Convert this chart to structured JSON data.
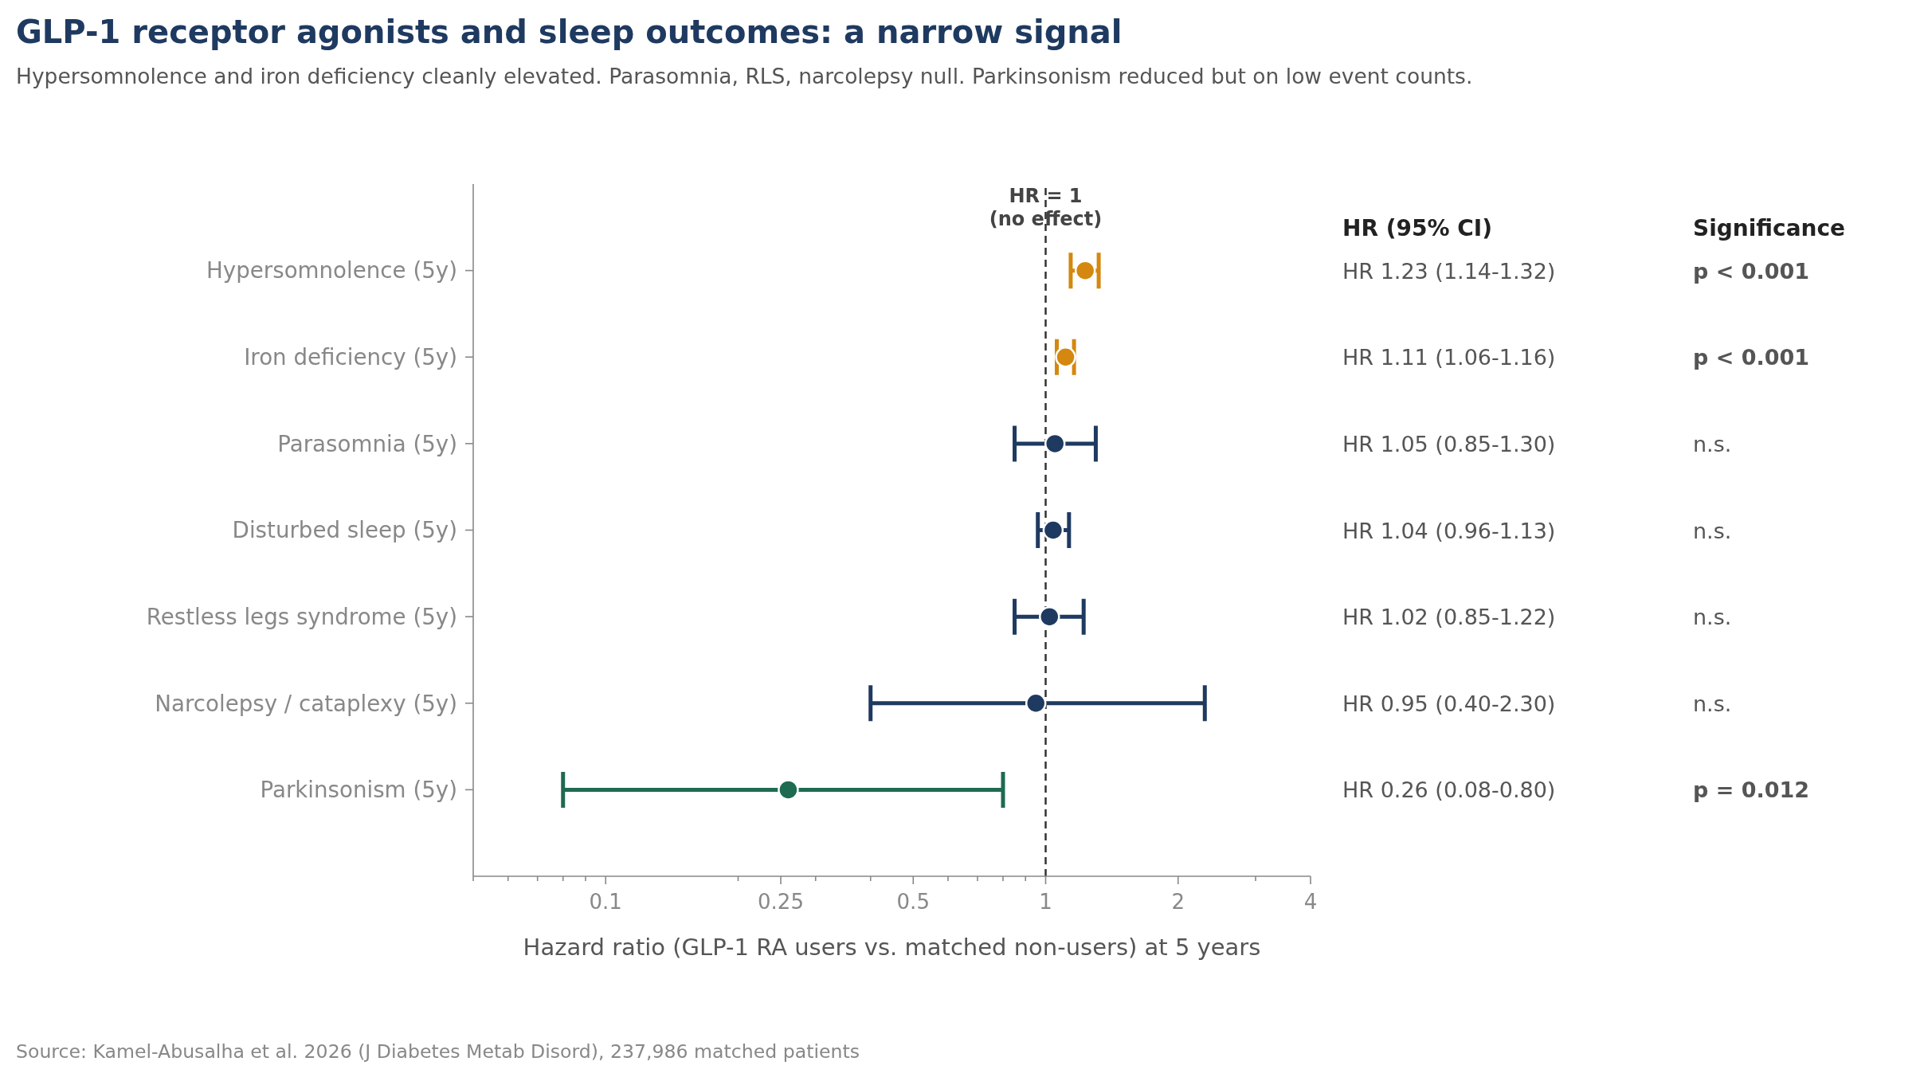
{
  "chart_data": {
    "type": "scatter",
    "orientation": "horizontal",
    "title": "GLP-1 receptor agonists and sleep outcomes: a narrow signal",
    "subtitle": "Hypersomnolence and iron deficiency cleanly elevated. Parasomnia, RLS, narcolepsy null. Parkinsonism reduced but on low event counts.",
    "xlabel": "Hazard ratio (GLP-1 RA users vs. matched non-users) at 5 years",
    "categories": [
      "Hypersomnolence (5y)",
      "Iron deficiency (5y)",
      "Parasomnia (5y)",
      "Disturbed sleep (5y)",
      "Restless legs syndrome (5y)",
      "Narcolepsy / cataplexy (5y)",
      "Parkinsonism (5y)"
    ],
    "values": [
      1.23,
      1.11,
      1.05,
      1.04,
      1.02,
      0.95,
      0.26
    ],
    "errors": [
      [
        1.14,
        1.32
      ],
      [
        1.06,
        1.16
      ],
      [
        0.85,
        1.3
      ],
      [
        0.96,
        1.13
      ],
      [
        0.85,
        1.22
      ],
      [
        0.4,
        2.3
      ],
      [
        0.08,
        0.8
      ]
    ],
    "colors": [
      "#d4880f",
      "#d4880f",
      "#1f3a60",
      "#1f3a60",
      "#1f3a60",
      "#1f3a60",
      "#1e6b4f"
    ],
    "value_labels": [
      "HR 1.23 (1.14-1.32)",
      "HR 1.11 (1.06-1.16)",
      "HR 1.05 (0.85-1.30)",
      "HR 1.04 (0.96-1.13)",
      "HR 1.02 (0.85-1.22)",
      "HR 0.95 (0.40-2.30)",
      "HR 0.26 (0.08-0.80)"
    ],
    "marker": "circle",
    "log": "x",
    "xlim": [
      0.05,
      4
    ],
    "xticks": [
      {
        "value": 0.05,
        "label": null
      },
      {
        "value": 0.06,
        "label": null
      },
      {
        "value": 0.07,
        "label": null
      },
      {
        "value": 0.08,
        "label": null
      },
      {
        "value": 0.09,
        "label": null
      },
      0.1,
      {
        "value": 0.2,
        "label": null
      },
      0.25,
      {
        "value": 0.3,
        "label": null
      },
      {
        "value": 0.4,
        "label": null
      },
      0.5,
      {
        "value": 0.6,
        "label": null
      },
      {
        "value": 0.7,
        "label": null
      },
      {
        "value": 0.8,
        "label": null
      },
      {
        "value": 0.9,
        "label": null
      },
      1,
      2,
      {
        "value": 3,
        "label": null
      },
      4
    ],
    "ref_lines": [
      {
        "axis": "x",
        "value": 1,
        "label": "HR = 1\n(no effect)",
        "color": "#333333",
        "line_style": "dashed"
      }
    ],
    "annotations": [
      "HR (95% CI)",
      "Significance",
      "p < 0.001",
      "p < 0.001",
      "n.s.",
      "n.s.",
      "n.s.",
      "n.s.",
      "p = 0.012",
      "Source: Kamel-Abusalha et al. 2026 (J Diabetes Metab Disord), 237,986 matched patients"
    ]
  }
}
